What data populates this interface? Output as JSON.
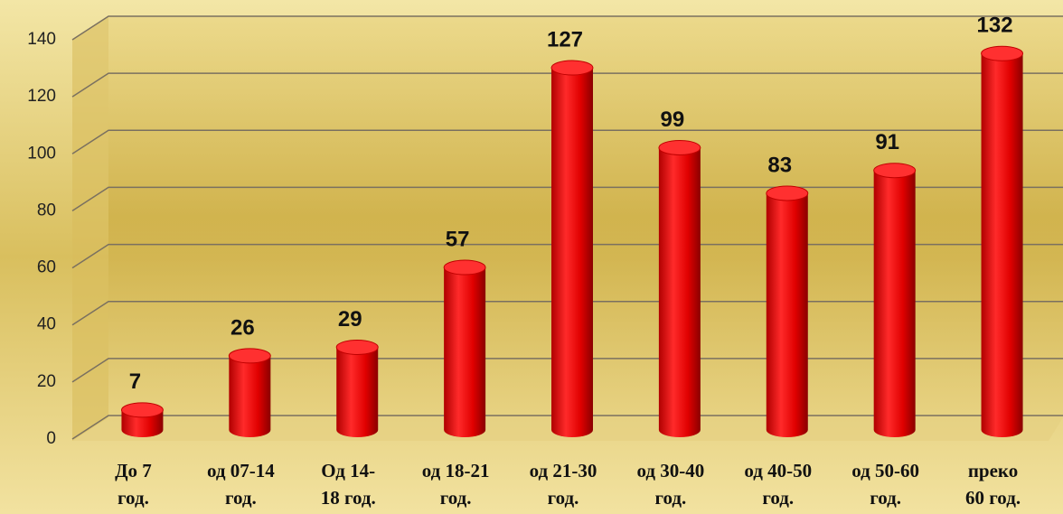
{
  "chart_data": {
    "type": "bar",
    "categories": [
      [
        "До 7",
        "год."
      ],
      [
        "од 07-14",
        "год."
      ],
      [
        "Од 14-",
        "18 год."
      ],
      [
        "од 18-21",
        "год."
      ],
      [
        "од 21-30",
        "год."
      ],
      [
        "од 30-40",
        "год."
      ],
      [
        "од 40-50",
        "год."
      ],
      [
        "од 50-60",
        "год."
      ],
      [
        "преко",
        "60  год."
      ]
    ],
    "values": [
      7,
      26,
      29,
      57,
      127,
      99,
      83,
      91,
      132
    ],
    "color": "#e00000",
    "ylim": [
      0,
      140
    ],
    "yticks": [
      0,
      20,
      40,
      60,
      80,
      100,
      120,
      140
    ],
    "grid": true
  }
}
